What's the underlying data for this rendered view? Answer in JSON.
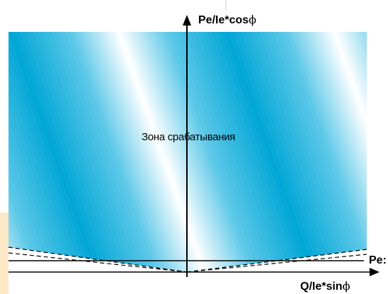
{
  "diagram": {
    "y_axis_label": "Pe/Ie*cos",
    "x_axis_label": "Q/Ie*sin",
    "phi_symbol": "ϕ",
    "zone_label": "Зона срабатывания",
    "setpoint_label": "Pe:"
  },
  "colors": {
    "zone_gradient": [
      "#00a6d6",
      "#ffffff"
    ],
    "page_tint": "#fce7c6",
    "lines": "#000000"
  }
}
